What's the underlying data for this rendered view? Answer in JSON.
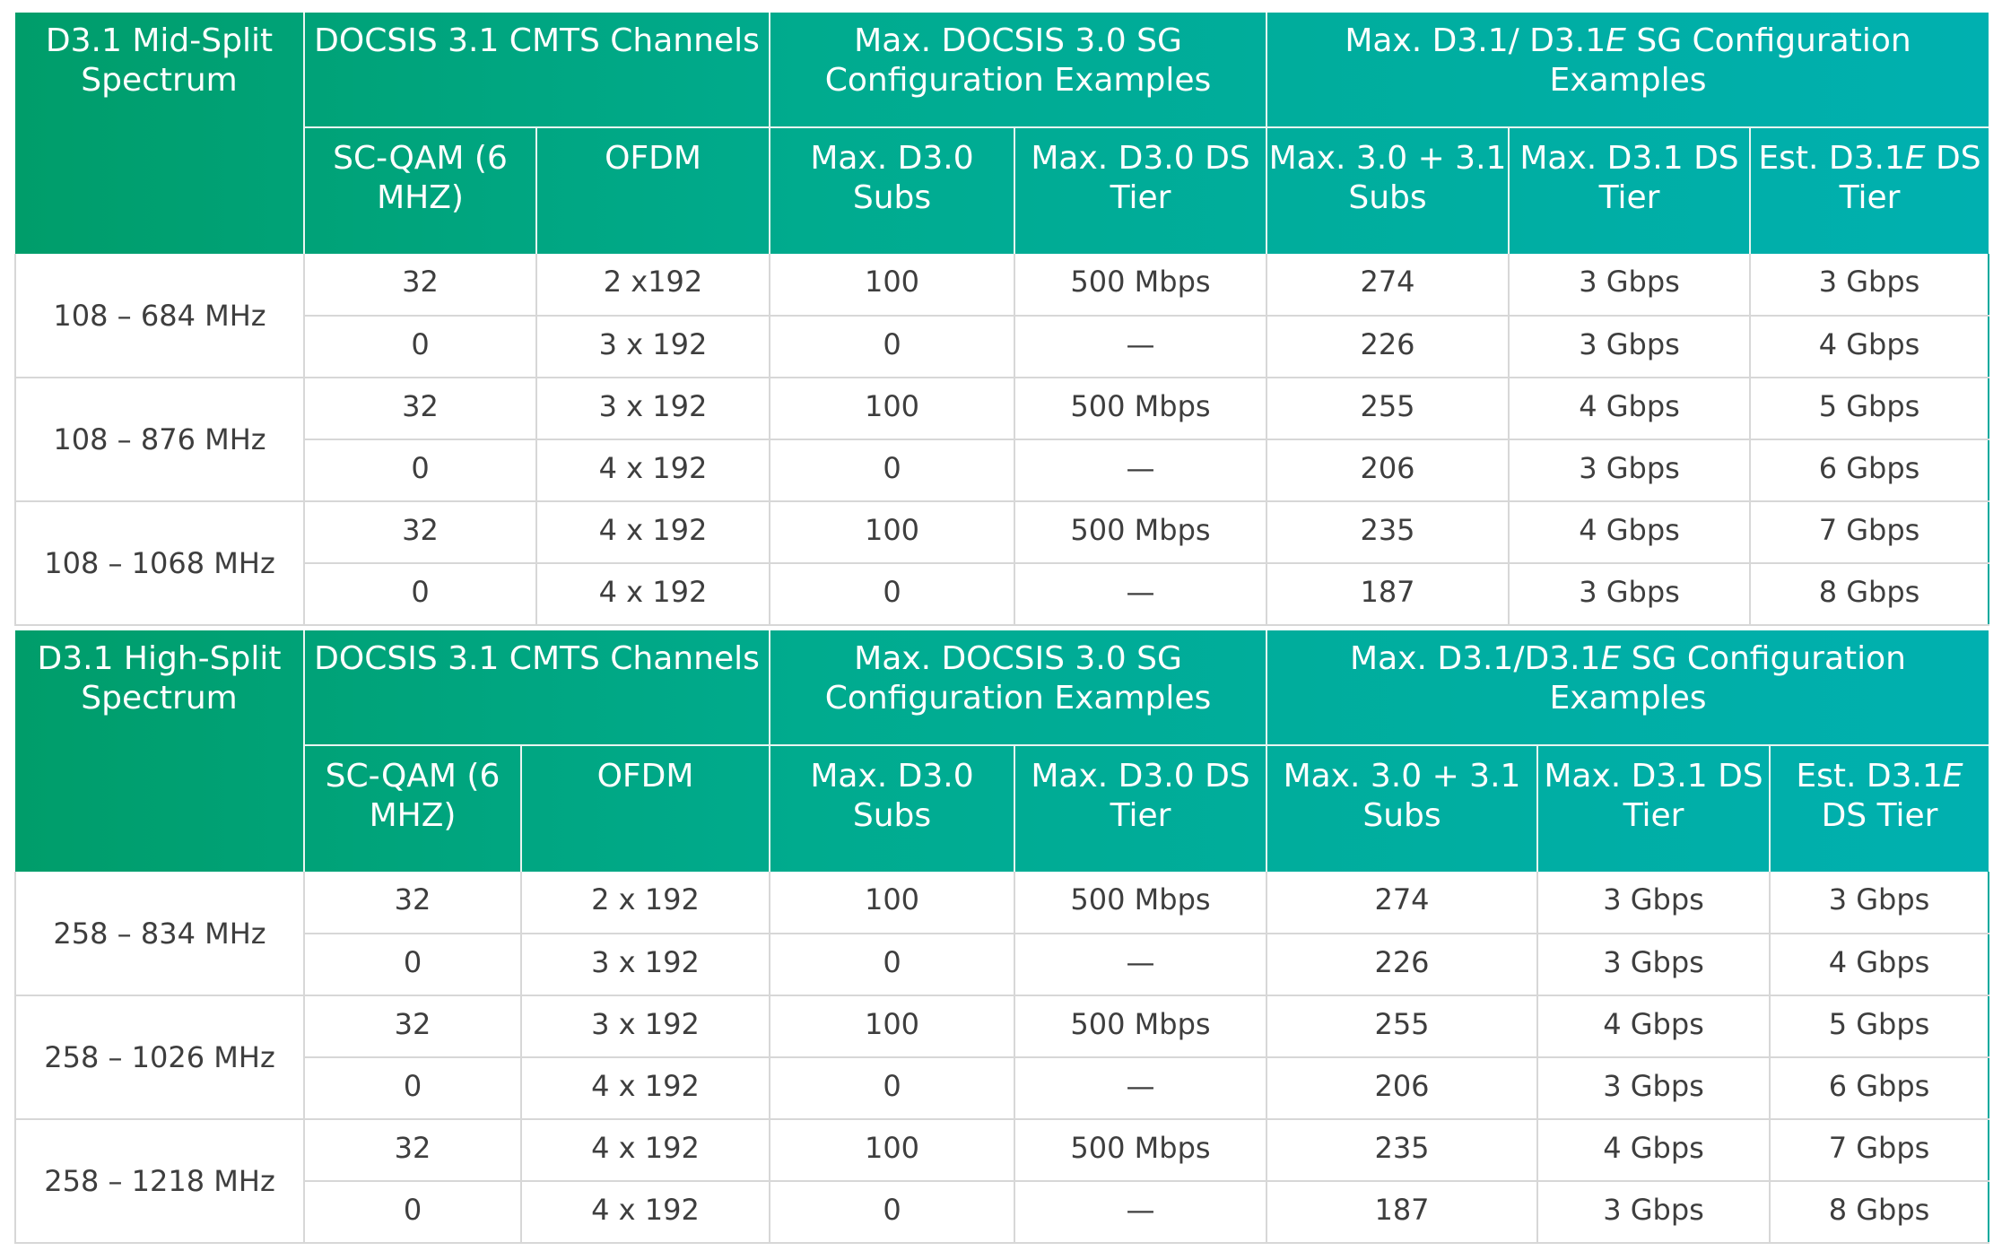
{
  "mid_split": {
    "spectrum_header": "D3.1 Mid-Split Spectrum",
    "cmts_header": "DOCSIS 3.1 CMTS Channels",
    "d30_header": "Max. DOCSIS 3.0 SG Configuration Examples",
    "d31_header_pre": "Max. D3.1/ D3.1",
    "d31_header_e": "E",
    "d31_header_post": " SG Configuration Examples",
    "sub_headers": {
      "scqam": "SC-QAM (6 MHZ)",
      "ofdm": "OFDM",
      "max_d30_subs": "Max. D3.0 Subs",
      "max_d30_ds_tier": "Max. D3.0 DS Tier",
      "max_30_31_subs": "Max. 3.0 + 3.1 Subs",
      "max_d31_ds_tier": "Max. D3.1 DS Tier",
      "est_d31e_pre": "Est. D3.1",
      "est_d31e_e": "E",
      "est_d31e_post": " DS Tier"
    },
    "groups": [
      {
        "spectrum": "108 – 684 MHz",
        "rows": [
          [
            "32",
            "2 x192",
            "100",
            "500 Mbps",
            "274",
            "3 Gbps",
            "3 Gbps"
          ],
          [
            "0",
            "3 x 192",
            "0",
            "—",
            "226",
            "3 Gbps",
            "4 Gbps"
          ]
        ]
      },
      {
        "spectrum": "108 – 876 MHz",
        "rows": [
          [
            "32",
            "3 x 192",
            "100",
            "500 Mbps",
            "255",
            "4 Gbps",
            "5 Gbps"
          ],
          [
            "0",
            "4 x 192",
            "0",
            "—",
            "206",
            "3 Gbps",
            "6 Gbps"
          ]
        ]
      },
      {
        "spectrum": "108 – 1068 MHz",
        "rows": [
          [
            "32",
            "4 x 192",
            "100",
            "500 Mbps",
            "235",
            "4 Gbps",
            "7 Gbps"
          ],
          [
            "0",
            "4 x 192",
            "0",
            "—",
            "187",
            "3 Gbps",
            "8 Gbps"
          ]
        ]
      }
    ]
  },
  "high_split": {
    "spectrum_header": "D3.1 High-Split Spectrum",
    "cmts_header": "DOCSIS 3.1 CMTS Channels",
    "d30_header": "Max. DOCSIS 3.0 SG Configuration Examples",
    "d31_header_pre": "Max. D3.1/D3.1",
    "d31_header_e": "E",
    "d31_header_post": " SG Configuration Examples",
    "sub_headers": {
      "scqam": "SC-QAM (6 MHZ)",
      "ofdm": "OFDM",
      "max_d30_subs": "Max. D3.0 Subs",
      "max_d30_ds_tier": "Max. D3.0 DS Tier",
      "max_30_31_subs": "Max. 3.0 + 3.1 Subs",
      "max_d31_ds_tier": "Max. D3.1 DS Tier",
      "est_d31e_pre": "Est. D3.1",
      "est_d31e_e": "E",
      "est_d31e_post": " DS Tier"
    },
    "groups": [
      {
        "spectrum": "258 – 834 MHz",
        "rows": [
          [
            "32",
            "2 x 192",
            "100",
            "500 Mbps",
            "274",
            "3 Gbps",
            "3 Gbps"
          ],
          [
            "0",
            "3 x 192",
            "0",
            "—",
            "226",
            "3 Gbps",
            "4 Gbps"
          ]
        ]
      },
      {
        "spectrum": "258 – 1026 MHz",
        "rows": [
          [
            "32",
            "3 x 192",
            "100",
            "500 Mbps",
            "255",
            "4 Gbps",
            "5 Gbps"
          ],
          [
            "0",
            "4 x 192",
            "0",
            "—",
            "206",
            "3 Gbps",
            "6 Gbps"
          ]
        ]
      },
      {
        "spectrum": "258 – 1218 MHz",
        "rows": [
          [
            "32",
            "4 x 192",
            "100",
            "500 Mbps",
            "235",
            "4 Gbps",
            "7 Gbps"
          ],
          [
            "0",
            "4 x 192",
            "0",
            "—",
            "187",
            "3 Gbps",
            "8 Gbps"
          ]
        ]
      }
    ]
  },
  "colors": {
    "header_start": "#009d6a",
    "header_mid": "#00ab8e",
    "header_end": "#00b0b0",
    "grid_line": "#d7d7d7",
    "body_text": "#3e3e3e"
  }
}
